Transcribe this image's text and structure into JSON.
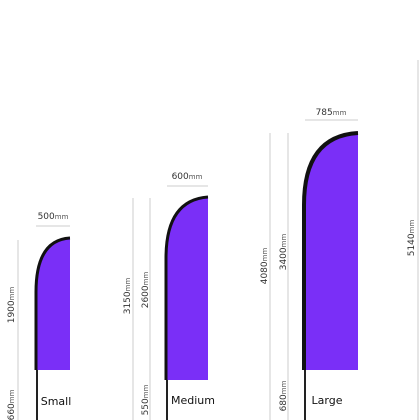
{
  "flags": [
    {
      "name": "Small",
      "width": "500",
      "flag_height": "1900",
      "pole_height": "660",
      "total_height": null
    },
    {
      "name": "Medium",
      "width": "600",
      "flag_height": "2600",
      "pole_height": "550",
      "total_height": "3150"
    },
    {
      "name": "Large",
      "width": "785",
      "flag_height": "3400",
      "pole_height": "680",
      "total_height": "4080"
    }
  ],
  "extra": {
    "total_height": "5140"
  },
  "unit": "mm"
}
